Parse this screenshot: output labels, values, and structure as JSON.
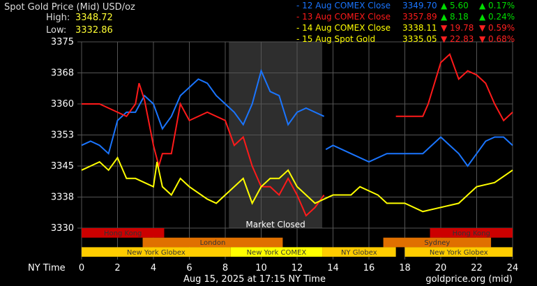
{
  "chart_data": {
    "type": "line",
    "title": "Spot Gold Price (Mid) USD/oz",
    "high_label": "High:",
    "high": "3348.72",
    "low_label": "Low:",
    "low": "3332.86",
    "xlabel": "NY Time",
    "x_ticks": [
      "0",
      "2",
      "4",
      "6",
      "8",
      "10",
      "12",
      "14",
      "16",
      "18",
      "20",
      "22",
      "24"
    ],
    "xlim": [
      0,
      24
    ],
    "y_ticks": [
      "3330",
      "3338",
      "3345",
      "3353",
      "3360",
      "3368",
      "3375"
    ],
    "ylim": [
      3330,
      3375
    ],
    "grid": true,
    "market_closed": {
      "label": "Market Closed",
      "from": 8.2,
      "to": 13.4
    },
    "footer_date": "Aug 15, 2025 at 17:15 NY Time",
    "footer_source": "goldprice.org (mid)",
    "legend_position": "top-right",
    "series": [
      {
        "name": "12 Aug COMEX Close",
        "price": "3349.70",
        "change": "5.60",
        "pct": "0.17%",
        "direction": "up",
        "color": "#1a75ff",
        "points": [
          [
            0,
            3350
          ],
          [
            0.5,
            3351
          ],
          [
            1,
            3350
          ],
          [
            1.5,
            3348
          ],
          [
            2,
            3356
          ],
          [
            2.5,
            3358
          ],
          [
            3,
            3358
          ],
          [
            3.5,
            3362
          ],
          [
            4,
            3360
          ],
          [
            4.5,
            3354
          ],
          [
            5,
            3357
          ],
          [
            5.5,
            3362
          ],
          [
            6,
            3364
          ],
          [
            6.5,
            3366
          ],
          [
            7,
            3365
          ],
          [
            7.5,
            3362
          ],
          [
            8,
            3360
          ],
          [
            8.5,
            3358
          ],
          [
            9,
            3355
          ],
          [
            9.5,
            3360
          ],
          [
            10,
            3368
          ],
          [
            10.5,
            3363
          ],
          [
            11,
            3362
          ],
          [
            11.5,
            3355
          ],
          [
            12,
            3358
          ],
          [
            12.5,
            3359
          ],
          [
            13,
            3358
          ],
          [
            13.5,
            3357
          ],
          null,
          [
            13.6,
            3349
          ],
          [
            14,
            3350
          ],
          [
            15,
            3348
          ],
          [
            16,
            3346
          ],
          [
            17,
            3348
          ],
          [
            18,
            3348
          ],
          [
            19,
            3348
          ],
          [
            19.5,
            3350
          ],
          [
            20,
            3352
          ],
          [
            20.5,
            3350
          ],
          [
            21,
            3348
          ],
          [
            21.5,
            3345
          ],
          [
            22,
            3348
          ],
          [
            22.5,
            3351
          ],
          [
            23,
            3352
          ],
          [
            23.5,
            3352
          ],
          [
            24,
            3350
          ]
        ]
      },
      {
        "name": "13 Aug COMEX Close",
        "price": "3357.89",
        "change": "8.18",
        "pct": "0.24%",
        "direction": "up",
        "color": "#ff1a1a",
        "points": [
          [
            0,
            3360
          ],
          [
            1,
            3360
          ],
          [
            2,
            3358
          ],
          [
            2.5,
            3357
          ],
          [
            3,
            3360
          ],
          [
            3.2,
            3365
          ],
          [
            3.5,
            3361
          ],
          [
            4,
            3350
          ],
          [
            4.3,
            3345
          ],
          [
            4.5,
            3348
          ],
          [
            5,
            3348
          ],
          [
            5.5,
            3360
          ],
          [
            6,
            3356
          ],
          [
            7,
            3358
          ],
          [
            8,
            3356
          ],
          [
            8.5,
            3350
          ],
          [
            9,
            3352
          ],
          [
            9.5,
            3345
          ],
          [
            10,
            3340
          ],
          [
            10.5,
            3340
          ],
          [
            11,
            3338
          ],
          [
            11.5,
            3342
          ],
          [
            12,
            3338
          ],
          [
            12.5,
            3333
          ],
          [
            13,
            3335
          ],
          [
            13.5,
            3338
          ],
          null,
          [
            17.5,
            3357
          ],
          [
            18,
            3357
          ],
          [
            19,
            3357
          ],
          [
            19.3,
            3360
          ],
          [
            20,
            3370
          ],
          [
            20.5,
            3372
          ],
          [
            21,
            3366
          ],
          [
            21.5,
            3368
          ],
          [
            22,
            3367
          ],
          [
            22.5,
            3365
          ],
          [
            23,
            3360
          ],
          [
            23.5,
            3356
          ],
          [
            24,
            3358
          ]
        ]
      },
      {
        "name": "14 Aug COMEX Close",
        "price": "3338.11",
        "change": "19.78",
        "pct": "0.59%",
        "direction": "down",
        "color": "#ffff00",
        "points": [
          [
            0,
            3344
          ],
          [
            1,
            3346
          ],
          [
            1.5,
            3344
          ],
          [
            2,
            3347
          ],
          [
            2.5,
            3342
          ],
          [
            3,
            3342
          ],
          [
            4,
            3340
          ],
          [
            4.2,
            3346
          ],
          [
            4.5,
            3340
          ],
          [
            5,
            3338
          ],
          [
            5.5,
            3342
          ],
          [
            6,
            3340
          ],
          [
            7,
            3337
          ],
          [
            7.5,
            3336
          ],
          [
            8,
            3338
          ],
          [
            8.5,
            3340
          ],
          [
            9,
            3342
          ],
          [
            9.5,
            3336
          ],
          [
            10,
            3340
          ],
          [
            10.5,
            3342
          ],
          [
            11,
            3342
          ],
          [
            11.5,
            3344
          ],
          [
            12,
            3340
          ],
          [
            12.5,
            3338
          ],
          [
            13,
            3336
          ],
          [
            13.5,
            3337
          ],
          [
            14,
            3338
          ],
          [
            15,
            3338
          ],
          [
            15.5,
            3340
          ],
          [
            16,
            3339
          ],
          [
            16.5,
            3338
          ],
          [
            17,
            3336
          ],
          [
            18,
            3336
          ],
          [
            19,
            3334
          ],
          [
            20,
            3335
          ],
          [
            21,
            3336
          ],
          [
            21.5,
            3338
          ],
          [
            22,
            3340
          ],
          [
            23,
            3341
          ],
          [
            24,
            3344
          ]
        ]
      },
      {
        "name": "15 Aug Spot Gold",
        "price": "3335.05",
        "change": "22.83",
        "pct": "0.68%",
        "direction": "down",
        "color": "#ffff00",
        "points": []
      }
    ],
    "sessions": [
      {
        "label": "Hong Kong",
        "row": 0,
        "from": 0,
        "to": 4.6,
        "color": "#cc0000"
      },
      {
        "label": "Hong Kong",
        "row": 0,
        "from": 19.4,
        "to": 24,
        "color": "#cc0000"
      },
      {
        "label": "London",
        "row": 1,
        "from": 3.4,
        "to": 11.2,
        "color": "#e07000"
      },
      {
        "label": "Sydney",
        "row": 1,
        "from": 16.8,
        "to": 22.8,
        "color": "#e07000"
      },
      {
        "label": "New York Globex",
        "row": 2,
        "from": 0,
        "to": 8.3,
        "color": "#ffcc00"
      },
      {
        "label": "New York COMEX",
        "row": 2,
        "from": 8.3,
        "to": 13.4,
        "color": "#ffff00"
      },
      {
        "label": "NY Globex",
        "row": 2,
        "from": 13.4,
        "to": 17.5,
        "color": "#ffcc00"
      },
      {
        "label": "New York Globex",
        "row": 2,
        "from": 18,
        "to": 24,
        "color": "#ffcc00"
      }
    ]
  }
}
